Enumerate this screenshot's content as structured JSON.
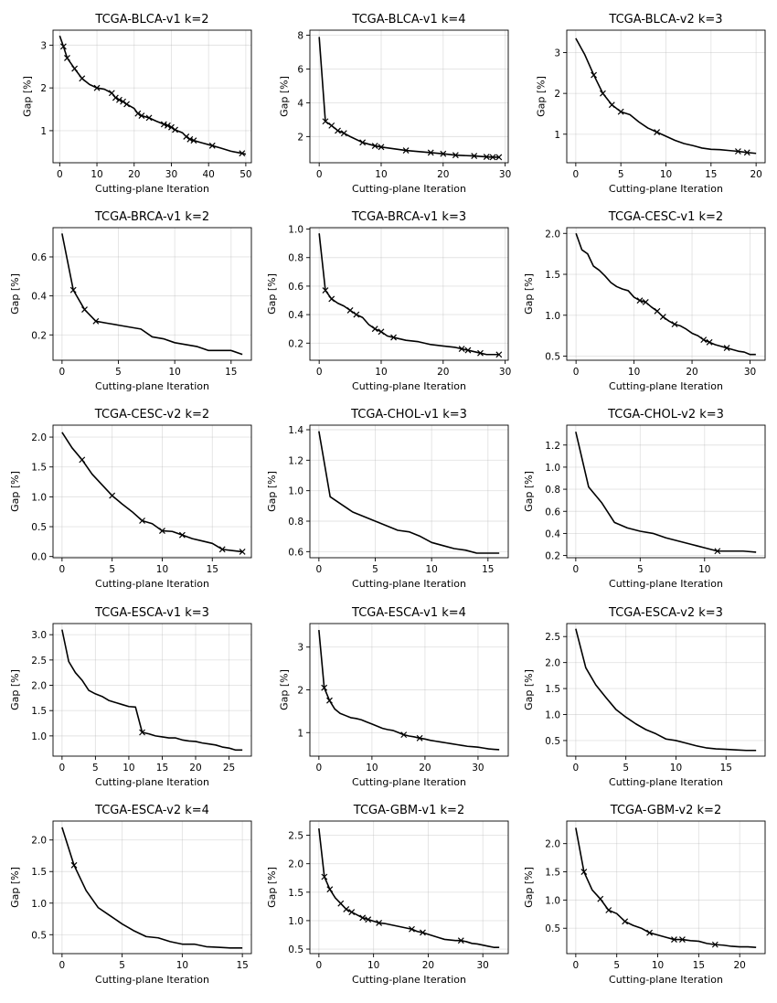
{
  "figure": {
    "xlabel": "Cutting-plane Iteration",
    "ylabel": "Gap [%]",
    "line_color": "#000000",
    "marker_symbol": "x"
  },
  "chart_data": [
    {
      "type": "line",
      "title": "TCGA-BLCA-v1 k=2",
      "xlabel": "Cutting-plane Iteration",
      "ylabel": "Gap [%]",
      "xlim": [
        -1.8,
        51.5
      ],
      "ylim": [
        0.25,
        3.35
      ],
      "xticks": [
        0,
        10,
        20,
        30,
        40,
        50
      ],
      "yticks": [
        1,
        2,
        3
      ],
      "x": [
        0,
        1,
        2,
        4,
        6,
        8,
        10,
        12,
        14,
        15,
        16,
        17,
        18,
        20,
        21,
        22,
        24,
        26,
        28,
        29,
        30,
        31,
        33,
        34,
        35,
        36,
        38,
        41,
        43,
        46,
        49,
        50
      ],
      "y": [
        3.22,
        2.97,
        2.7,
        2.45,
        2.22,
        2.08,
        2.0,
        1.97,
        1.88,
        1.77,
        1.72,
        1.68,
        1.62,
        1.52,
        1.4,
        1.35,
        1.3,
        1.22,
        1.15,
        1.12,
        1.08,
        1.02,
        0.95,
        0.86,
        0.8,
        0.77,
        0.72,
        0.65,
        0.6,
        0.52,
        0.47,
        0.45
      ],
      "markers": [
        1,
        2,
        4,
        6,
        10,
        14,
        15,
        16,
        17,
        18,
        21,
        22,
        24,
        28,
        29,
        30,
        31,
        34,
        35,
        36,
        41,
        49
      ]
    },
    {
      "type": "line",
      "title": "TCGA-BLCA-v1 k=4",
      "xlabel": "Cutting-plane Iteration",
      "ylabel": "Gap [%]",
      "xlim": [
        -1.5,
        30.5
      ],
      "ylim": [
        0.45,
        8.3
      ],
      "xticks": [
        0,
        10,
        20,
        30
      ],
      "yticks": [
        2,
        4,
        6,
        8
      ],
      "x": [
        0,
        1,
        2,
        3,
        4,
        5,
        7,
        8,
        9,
        10,
        14,
        18,
        20,
        22,
        25,
        27,
        28,
        29
      ],
      "y": [
        7.9,
        2.9,
        2.65,
        2.35,
        2.2,
        2.0,
        1.65,
        1.55,
        1.45,
        1.38,
        1.18,
        1.05,
        0.98,
        0.9,
        0.85,
        0.8,
        0.78,
        0.78
      ],
      "markers": [
        1,
        2,
        3,
        4,
        7,
        9,
        10,
        14,
        18,
        20,
        22,
        25,
        27,
        28,
        29
      ]
    },
    {
      "type": "line",
      "title": "TCGA-BLCA-v2 k=3",
      "xlabel": "Cutting-plane Iteration",
      "ylabel": "Gap [%]",
      "xlim": [
        -1.0,
        21.0
      ],
      "ylim": [
        0.3,
        3.55
      ],
      "xticks": [
        0,
        5,
        10,
        15,
        20
      ],
      "yticks": [
        1,
        2,
        3
      ],
      "x": [
        0,
        1,
        2,
        3,
        4,
        5,
        6,
        7,
        8,
        9,
        10,
        11,
        12,
        13,
        14,
        15,
        16,
        17,
        18,
        19,
        20
      ],
      "y": [
        3.35,
        2.95,
        2.45,
        2.0,
        1.72,
        1.55,
        1.48,
        1.3,
        1.15,
        1.05,
        0.95,
        0.85,
        0.77,
        0.72,
        0.66,
        0.63,
        0.62,
        0.6,
        0.58,
        0.55,
        0.53
      ],
      "markers": [
        2,
        3,
        4,
        5,
        9,
        18,
        19
      ]
    },
    {
      "type": "line",
      "title": "TCGA-BRCA-v1 k=2",
      "xlabel": "Cutting-plane Iteration",
      "ylabel": "Gap [%]",
      "xlim": [
        -0.8,
        16.8
      ],
      "ylim": [
        0.07,
        0.75
      ],
      "xticks": [
        0,
        5,
        10,
        15
      ],
      "yticks": [
        0.2,
        0.4,
        0.6
      ],
      "x": [
        0,
        1,
        2,
        3,
        4,
        5,
        6,
        7,
        8,
        9,
        10,
        11,
        12,
        13,
        14,
        15,
        16
      ],
      "y": [
        0.72,
        0.43,
        0.33,
        0.27,
        0.26,
        0.25,
        0.24,
        0.23,
        0.19,
        0.18,
        0.16,
        0.15,
        0.14,
        0.12,
        0.12,
        0.12,
        0.1
      ],
      "markers": [
        1,
        2,
        3
      ]
    },
    {
      "type": "line",
      "title": "TCGA-BRCA-v1 k=3",
      "xlabel": "Cutting-plane Iteration",
      "ylabel": "Gap [%]",
      "xlim": [
        -1.5,
        30.5
      ],
      "ylim": [
        0.08,
        1.01
      ],
      "xticks": [
        0,
        10,
        20,
        30
      ],
      "yticks": [
        0.2,
        0.4,
        0.6,
        0.8,
        1.0
      ],
      "x": [
        0,
        1,
        2,
        3,
        4,
        5,
        6,
        7,
        8,
        9,
        10,
        11,
        12,
        14,
        16,
        18,
        20,
        22,
        23,
        24,
        26,
        27,
        29
      ],
      "y": [
        0.97,
        0.57,
        0.51,
        0.48,
        0.46,
        0.43,
        0.4,
        0.38,
        0.33,
        0.3,
        0.28,
        0.25,
        0.24,
        0.22,
        0.21,
        0.19,
        0.18,
        0.17,
        0.16,
        0.15,
        0.13,
        0.12,
        0.12
      ],
      "markers": [
        1,
        2,
        5,
        6,
        9,
        10,
        12,
        23,
        24,
        26,
        29
      ]
    },
    {
      "type": "line",
      "title": "TCGA-CESC-v1 k=2",
      "xlabel": "Cutting-plane Iteration",
      "ylabel": "Gap [%]",
      "xlim": [
        -1.6,
        32.6
      ],
      "ylim": [
        0.45,
        2.07
      ],
      "xticks": [
        0,
        10,
        20,
        30
      ],
      "yticks": [
        0.5,
        1.0,
        1.5,
        2.0
      ],
      "x": [
        0,
        1,
        2,
        3,
        4,
        5,
        6,
        7,
        8,
        9,
        10,
        11,
        12,
        13,
        14,
        15,
        16,
        17,
        18,
        19,
        20,
        21,
        22,
        23,
        24,
        25,
        26,
        27,
        28,
        29,
        30,
        31
      ],
      "y": [
        2.0,
        1.8,
        1.75,
        1.6,
        1.55,
        1.48,
        1.4,
        1.35,
        1.32,
        1.3,
        1.22,
        1.18,
        1.16,
        1.1,
        1.05,
        0.98,
        0.93,
        0.89,
        0.87,
        0.83,
        0.78,
        0.75,
        0.7,
        0.67,
        0.64,
        0.62,
        0.6,
        0.58,
        0.56,
        0.55,
        0.52,
        0.52
      ],
      "markers": [
        11,
        12,
        14,
        15,
        17,
        22,
        23,
        26
      ]
    },
    {
      "type": "line",
      "title": "TCGA-CESC-v2 k=2",
      "xlabel": "Cutting-plane Iteration",
      "ylabel": "Gap [%]",
      "xlim": [
        -0.9,
        18.9
      ],
      "ylim": [
        -0.02,
        2.2
      ],
      "xticks": [
        0,
        5,
        10,
        15
      ],
      "yticks": [
        0.0,
        0.5,
        1.0,
        1.5,
        2.0
      ],
      "x": [
        0,
        1,
        2,
        3,
        4,
        5,
        6,
        7,
        8,
        9,
        10,
        11,
        12,
        13,
        14,
        15,
        16,
        17,
        18
      ],
      "y": [
        2.08,
        1.82,
        1.62,
        1.38,
        1.2,
        1.02,
        0.88,
        0.75,
        0.6,
        0.55,
        0.43,
        0.42,
        0.36,
        0.3,
        0.26,
        0.22,
        0.12,
        0.1,
        0.08
      ],
      "markers": [
        2,
        5,
        8,
        10,
        12,
        16,
        18
      ]
    },
    {
      "type": "line",
      "title": "TCGA-CHOL-v1 k=3",
      "xlabel": "Cutting-plane Iteration",
      "ylabel": "Gap [%]",
      "xlim": [
        -0.8,
        16.8
      ],
      "ylim": [
        0.56,
        1.43
      ],
      "xticks": [
        0,
        5,
        10,
        15
      ],
      "yticks": [
        0.6,
        0.8,
        1.0,
        1.2,
        1.4
      ],
      "x": [
        0,
        1,
        2,
        3,
        4,
        5,
        6,
        7,
        8,
        9,
        10,
        11,
        12,
        13,
        14,
        15,
        16
      ],
      "y": [
        1.39,
        0.96,
        0.91,
        0.86,
        0.83,
        0.8,
        0.77,
        0.74,
        0.73,
        0.7,
        0.66,
        0.64,
        0.62,
        0.61,
        0.59,
        0.59,
        0.59
      ],
      "markers": []
    },
    {
      "type": "line",
      "title": "TCGA-CHOL-v2 k=3",
      "xlabel": "Cutting-plane Iteration",
      "ylabel": "Gap [%]",
      "xlim": [
        -0.7,
        14.7
      ],
      "ylim": [
        0.18,
        1.38
      ],
      "xticks": [
        0,
        5,
        10
      ],
      "yticks": [
        0.2,
        0.4,
        0.6,
        0.8,
        1.0,
        1.2
      ],
      "x": [
        0,
        1,
        2,
        3,
        4,
        5,
        6,
        7,
        8,
        9,
        10,
        11,
        12,
        13,
        14
      ],
      "y": [
        1.32,
        0.82,
        0.68,
        0.5,
        0.45,
        0.42,
        0.4,
        0.36,
        0.33,
        0.3,
        0.27,
        0.24,
        0.24,
        0.24,
        0.23
      ],
      "markers": [
        11
      ]
    },
    {
      "type": "line",
      "title": "TCGA-ESCA-v1 k=3",
      "xlabel": "Cutting-plane Iteration",
      "ylabel": "Gap [%]",
      "xlim": [
        -1.35,
        28.35
      ],
      "ylim": [
        0.6,
        3.22
      ],
      "xticks": [
        0,
        5,
        10,
        15,
        20,
        25
      ],
      "yticks": [
        1.0,
        1.5,
        2.0,
        2.5,
        3.0
      ],
      "x": [
        0,
        1,
        2,
        3,
        4,
        5,
        6,
        7,
        8,
        9,
        10,
        11,
        12,
        13,
        14,
        15,
        16,
        17,
        18,
        19,
        20,
        21,
        22,
        23,
        24,
        25,
        26,
        27
      ],
      "y": [
        3.1,
        2.47,
        2.25,
        2.1,
        1.9,
        1.83,
        1.78,
        1.7,
        1.66,
        1.62,
        1.58,
        1.57,
        1.07,
        1.04,
        1.0,
        0.98,
        0.96,
        0.96,
        0.92,
        0.9,
        0.89,
        0.86,
        0.84,
        0.82,
        0.78,
        0.76,
        0.72,
        0.72
      ],
      "markers": [
        12
      ]
    },
    {
      "type": "line",
      "title": "TCGA-ESCA-v1 k=4",
      "xlabel": "Cutting-plane Iteration",
      "ylabel": "Gap [%]",
      "xlim": [
        -1.7,
        35.7
      ],
      "ylim": [
        0.45,
        3.55
      ],
      "xticks": [
        0,
        10,
        20,
        30
      ],
      "yticks": [
        1,
        2,
        3
      ],
      "x": [
        0,
        1,
        2,
        3,
        4,
        5,
        6,
        7,
        8,
        9,
        10,
        11,
        12,
        13,
        14,
        15,
        16,
        17,
        18,
        19,
        20,
        21,
        22,
        23,
        24,
        25,
        26,
        27,
        28,
        29,
        30,
        31,
        32,
        33,
        34
      ],
      "y": [
        3.4,
        2.05,
        1.75,
        1.55,
        1.45,
        1.4,
        1.35,
        1.33,
        1.3,
        1.25,
        1.2,
        1.15,
        1.1,
        1.07,
        1.05,
        1.0,
        0.95,
        0.92,
        0.9,
        0.87,
        0.85,
        0.82,
        0.8,
        0.78,
        0.76,
        0.74,
        0.72,
        0.7,
        0.68,
        0.67,
        0.66,
        0.64,
        0.62,
        0.61,
        0.6
      ],
      "markers": [
        1,
        2,
        16,
        19
      ]
    },
    {
      "type": "line",
      "title": "TCGA-ESCA-v2 k=3",
      "xlabel": "Cutting-plane Iteration",
      "ylabel": "Gap [%]",
      "xlim": [
        -0.9,
        18.9
      ],
      "ylim": [
        0.2,
        2.75
      ],
      "xticks": [
        0,
        5,
        10,
        15
      ],
      "yticks": [
        0.5,
        1.0,
        1.5,
        2.0,
        2.5
      ],
      "x": [
        0,
        1,
        2,
        3,
        4,
        5,
        6,
        7,
        8,
        9,
        10,
        11,
        12,
        13,
        14,
        15,
        16,
        17,
        18
      ],
      "y": [
        2.65,
        1.9,
        1.57,
        1.33,
        1.1,
        0.95,
        0.82,
        0.71,
        0.63,
        0.53,
        0.5,
        0.45,
        0.4,
        0.36,
        0.34,
        0.33,
        0.32,
        0.31,
        0.31
      ],
      "markers": []
    },
    {
      "type": "line",
      "title": "TCGA-ESCA-v2 k=4",
      "xlabel": "Cutting-plane Iteration",
      "ylabel": "Gap [%]",
      "xlim": [
        -0.75,
        15.75
      ],
      "ylim": [
        0.2,
        2.3
      ],
      "xticks": [
        0,
        5,
        10,
        15
      ],
      "yticks": [
        0.5,
        1.0,
        1.5,
        2.0
      ],
      "x": [
        0,
        1,
        2,
        3,
        4,
        5,
        6,
        7,
        8,
        9,
        10,
        11,
        12,
        13,
        14,
        15
      ],
      "y": [
        2.2,
        1.6,
        1.2,
        0.93,
        0.8,
        0.67,
        0.56,
        0.47,
        0.45,
        0.39,
        0.35,
        0.35,
        0.31,
        0.3,
        0.29,
        0.29
      ],
      "markers": [
        1
      ]
    },
    {
      "type": "line",
      "title": "TCGA-GBM-v1 k=2",
      "xlabel": "Cutting-plane Iteration",
      "ylabel": "Gap [%]",
      "xlim": [
        -1.65,
        34.65
      ],
      "ylim": [
        0.42,
        2.75
      ],
      "xticks": [
        0,
        10,
        20,
        30
      ],
      "yticks": [
        0.5,
        1.0,
        1.5,
        2.0,
        2.5
      ],
      "x": [
        0,
        1,
        2,
        3,
        4,
        5,
        6,
        7,
        8,
        9,
        10,
        11,
        12,
        13,
        14,
        15,
        16,
        17,
        18,
        19,
        20,
        21,
        22,
        23,
        24,
        25,
        26,
        27,
        28,
        29,
        30,
        31,
        32,
        33
      ],
      "y": [
        2.62,
        1.77,
        1.55,
        1.4,
        1.3,
        1.2,
        1.15,
        1.1,
        1.05,
        1.02,
        0.99,
        0.96,
        0.95,
        0.93,
        0.91,
        0.89,
        0.87,
        0.85,
        0.81,
        0.79,
        0.76,
        0.73,
        0.7,
        0.67,
        0.66,
        0.65,
        0.65,
        0.63,
        0.6,
        0.59,
        0.57,
        0.55,
        0.53,
        0.53
      ],
      "markers": [
        1,
        2,
        4,
        5,
        6,
        8,
        9,
        11,
        17,
        19,
        26
      ]
    },
    {
      "type": "line",
      "title": "TCGA-GBM-v2 k=2",
      "xlabel": "Cutting-plane Iteration",
      "ylabel": "Gap [%]",
      "xlim": [
        -1.1,
        23.1
      ],
      "ylim": [
        0.05,
        2.4
      ],
      "xticks": [
        0,
        5,
        10,
        15,
        20
      ],
      "yticks": [
        0.5,
        1.0,
        1.5,
        2.0
      ],
      "x": [
        0,
        1,
        2,
        3,
        4,
        5,
        6,
        7,
        8,
        9,
        10,
        11,
        12,
        13,
        14,
        15,
        16,
        17,
        18,
        19,
        20,
        21,
        22
      ],
      "y": [
        2.28,
        1.5,
        1.18,
        1.02,
        0.82,
        0.76,
        0.62,
        0.55,
        0.5,
        0.42,
        0.38,
        0.34,
        0.3,
        0.3,
        0.28,
        0.27,
        0.23,
        0.21,
        0.2,
        0.18,
        0.17,
        0.17,
        0.16
      ],
      "markers": [
        1,
        3,
        4,
        6,
        9,
        12,
        13,
        17
      ]
    }
  ]
}
